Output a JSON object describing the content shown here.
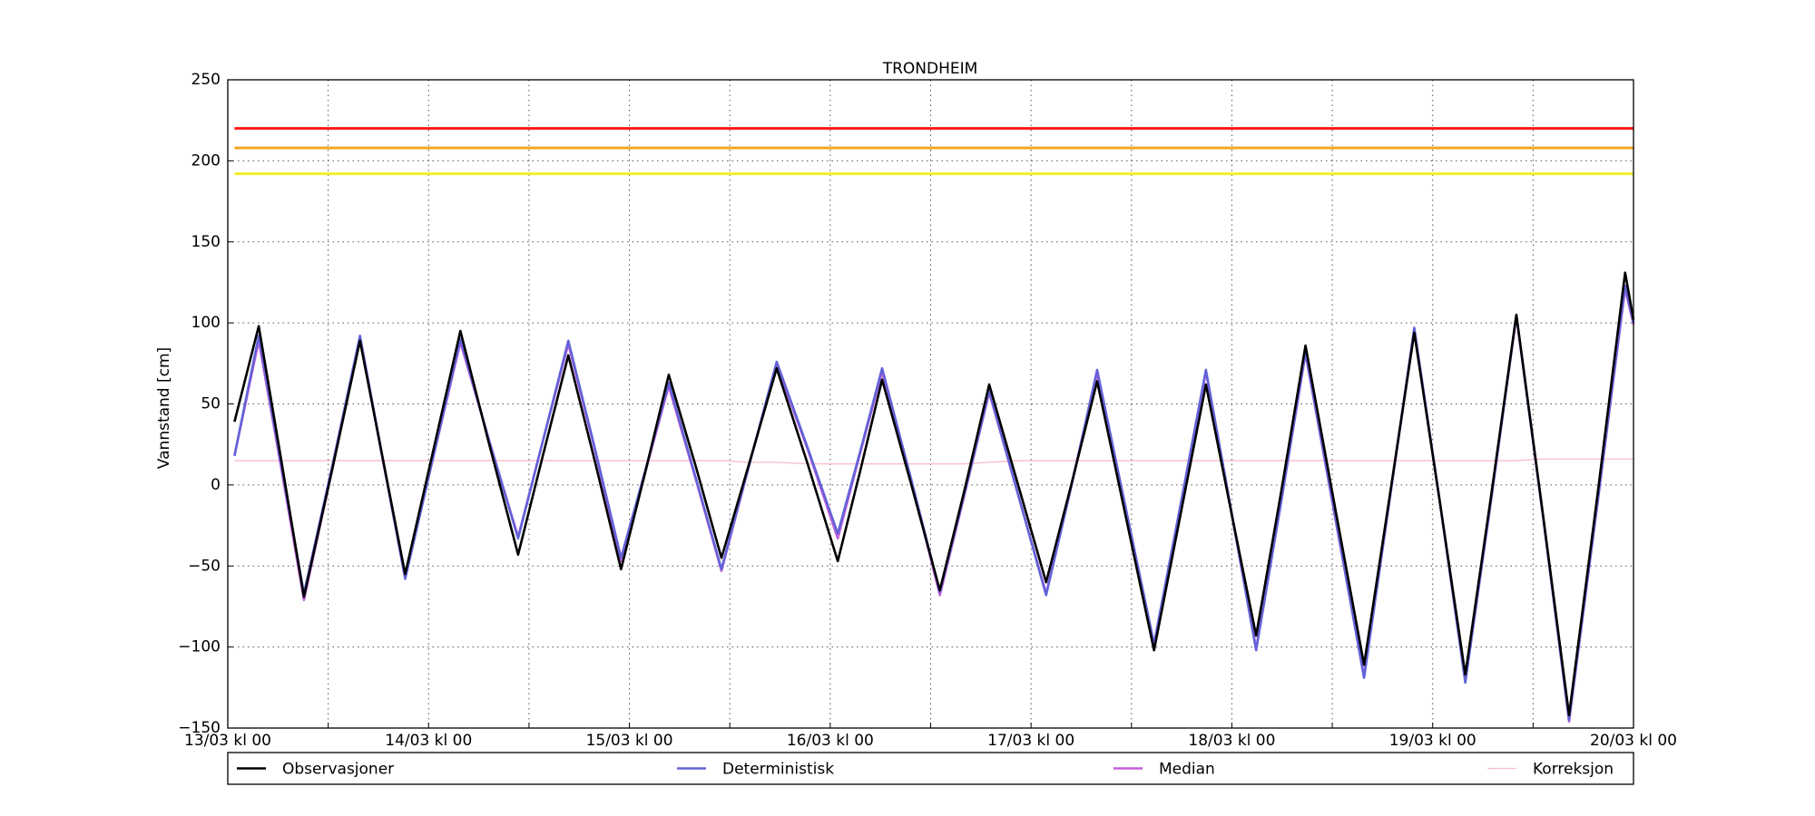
{
  "chart_data": {
    "type": "line",
    "title": "TRONDHEIM",
    "y_label": "Vannstand [cm]",
    "x": [
      0.8,
      3.7,
      6.4,
      9.1,
      12.5,
      15.8,
      18.5,
      21.2,
      24.5,
      27.8,
      31.2,
      34.7,
      37.7,
      40.7,
      43.9,
      47.0,
      49.9,
      52.7,
      55.9,
      59.0,
      62.3,
      65.6,
      69.3,
      72.9,
      75.6,
      78.2,
      81.7,
      85.1,
      88.1,
      91.0,
      94.4,
      97.8,
      100.9,
      103.9,
      107.3,
      110.7,
      113.8,
      116.9,
      119.9,
      122.9,
      125.9,
      128.8,
      132.3,
      135.8,
      138.8,
      141.8,
      144.9,
      147.9,
      151.0,
      154.0,
      157.2,
      160.3,
      163.7,
      167.0,
      168.0
    ],
    "series": [
      {
        "name": "Observasjoner",
        "color": "#000000",
        "values": [
          39,
          98,
          15,
          -69,
          10,
          89,
          17,
          -55,
          20,
          95,
          26,
          -43,
          19,
          80,
          14,
          -52,
          8,
          68,
          12,
          -45,
          13,
          72,
          13,
          -47,
          9,
          65,
          0,
          -65,
          -2,
          62,
          1,
          -60,
          2,
          64,
          -19,
          -102,
          -20,
          62,
          -16,
          -93,
          -4,
          86,
          -13,
          -111,
          -9,
          94,
          -12,
          -117,
          -6,
          105,
          -19,
          -142,
          -6,
          131,
          102
        ]
      },
      {
        "name": "Deterministisk",
        "color": "#6262d8",
        "values": [
          18,
          92,
          12,
          -67,
          12,
          92,
          17,
          -58,
          16,
          90,
          28,
          -33,
          28,
          89,
          22,
          -45,
          9,
          63,
          5,
          -52,
          12,
          76,
          23,
          -30,
          21,
          72,
          3,
          -66,
          -4,
          58,
          -5,
          -68,
          1,
          71,
          -14,
          -98,
          -14,
          71,
          -15,
          -102,
          -10,
          82,
          -18,
          -119,
          -11,
          97,
          -12,
          -122,
          -8,
          105,
          -20,
          -145,
          -11,
          123,
          100
        ]
      },
      {
        "name": "Median",
        "color": "#c45fdc",
        "values": [
          18,
          89,
          10,
          -71,
          10,
          90,
          16,
          -57,
          16,
          88,
          28,
          -32,
          28,
          87,
          21,
          -47,
          8,
          61,
          4,
          -53,
          12,
          74,
          22,
          -33,
          20,
          70,
          2,
          -68,
          -5,
          57,
          -5,
          -67,
          2,
          69,
          -14,
          -99,
          -15,
          70,
          -16,
          -101,
          -10,
          81,
          -19,
          -118,
          -11,
          95,
          -12,
          -121,
          -9,
          104,
          -20,
          -146,
          -11,
          121,
          99
        ]
      },
      {
        "name": "Korreksjon",
        "color": "#f7bcc8",
        "values": [
          15,
          15,
          15,
          15,
          15,
          15,
          15,
          15,
          15,
          15,
          15,
          15,
          15,
          15,
          15,
          15,
          15,
          15,
          15,
          15,
          14,
          14,
          13,
          13,
          13,
          13,
          13,
          13,
          13,
          14,
          15,
          15,
          15,
          15,
          15,
          15,
          15,
          15,
          15,
          15,
          15,
          15,
          15,
          15,
          15,
          15,
          15,
          15,
          15,
          15,
          16,
          16,
          16,
          16,
          16
        ]
      }
    ],
    "thresholds": [
      {
        "value": 220,
        "color": "#ff1a1a"
      },
      {
        "value": 208,
        "color": "#f5a623"
      },
      {
        "value": 192,
        "color": "#f2ee2a"
      }
    ],
    "xlim": [
      0,
      168
    ],
    "xticks": [
      {
        "value": 0,
        "label": "13/03 kl 00"
      },
      {
        "value": 24,
        "label": "14/03 kl 00"
      },
      {
        "value": 48,
        "label": "15/03 kl 00"
      },
      {
        "value": 72,
        "label": "16/03 kl 00"
      },
      {
        "value": 96,
        "label": "17/03 kl 00"
      },
      {
        "value": 120,
        "label": "18/03 kl 00"
      },
      {
        "value": 144,
        "label": "19/03 kl 00"
      },
      {
        "value": 168,
        "label": "20/03 kl 00"
      }
    ],
    "xminorticks": [
      12,
      36,
      60,
      84,
      108,
      132,
      156
    ],
    "ylim": [
      -150,
      250
    ],
    "yticks": [
      {
        "value": -150,
        "label": "−150"
      },
      {
        "value": -100,
        "label": "−100"
      },
      {
        "value": -50,
        "label": "−50"
      },
      0,
      50,
      100,
      150,
      200,
      250
    ],
    "grid": true,
    "legend": "bottom"
  }
}
